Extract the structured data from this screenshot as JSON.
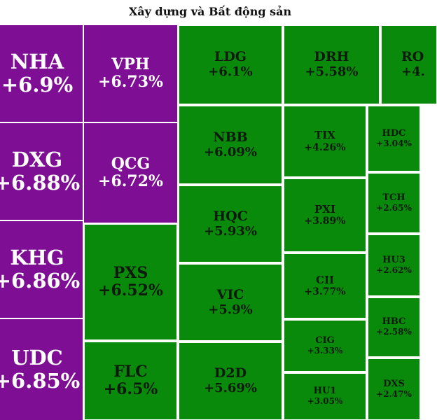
{
  "title": "Xây dựng và Bất động sản",
  "tiles": [
    {
      "symbol": "NHA",
      "change": "+6.9%",
      "status": "ceiling"
    },
    {
      "symbol": "DXG",
      "change": "+6.88%",
      "status": "ceiling"
    },
    {
      "symbol": "KHG",
      "change": "+6.86%",
      "status": "ceiling"
    },
    {
      "symbol": "UDC",
      "change": "+6.85%",
      "status": "ceiling"
    },
    {
      "symbol": "VPH",
      "change": "+6.73%",
      "status": "ceiling"
    },
    {
      "symbol": "QCG",
      "change": "+6.72%",
      "status": "ceiling"
    },
    {
      "symbol": "PXS",
      "change": "+6.52%",
      "status": "up"
    },
    {
      "symbol": "FLC",
      "change": "+6.5%",
      "status": "up"
    },
    {
      "symbol": "LDG",
      "change": "+6.1%",
      "status": "up"
    },
    {
      "symbol": "NBB",
      "change": "+6.09%",
      "status": "up"
    },
    {
      "symbol": "HQC",
      "change": "+5.93%",
      "status": "up"
    },
    {
      "symbol": "VIC",
      "change": "+5.9%",
      "status": "up"
    },
    {
      "symbol": "D2D",
      "change": "+5.69%",
      "status": "up"
    },
    {
      "symbol": "DRH",
      "change": "+5.58%",
      "status": "up"
    },
    {
      "symbol": "TIX",
      "change": "+4.26%",
      "status": "up"
    },
    {
      "symbol": "PXI",
      "change": "+3.89%",
      "status": "up"
    },
    {
      "symbol": "CII",
      "change": "+3.77%",
      "status": "up"
    },
    {
      "symbol": "CIG",
      "change": "+3.33%",
      "status": "up"
    },
    {
      "symbol": "HU1",
      "change": "+3.05%",
      "status": "up"
    },
    {
      "symbol": "RO",
      "change": "+4.",
      "status": "up"
    },
    {
      "symbol": "HDC",
      "change": "+3.04%",
      "status": "up"
    },
    {
      "symbol": "TCH",
      "change": "+2.65%",
      "status": "up"
    },
    {
      "symbol": "HU3",
      "change": "+2.62%",
      "status": "up"
    },
    {
      "symbol": "HBC",
      "change": "+2.58%",
      "status": "up"
    },
    {
      "symbol": "DXS",
      "change": "+2.47%",
      "status": "up"
    }
  ],
  "colors": {
    "ceiling": "#7e0f94",
    "up": "#0a8a0a"
  }
}
